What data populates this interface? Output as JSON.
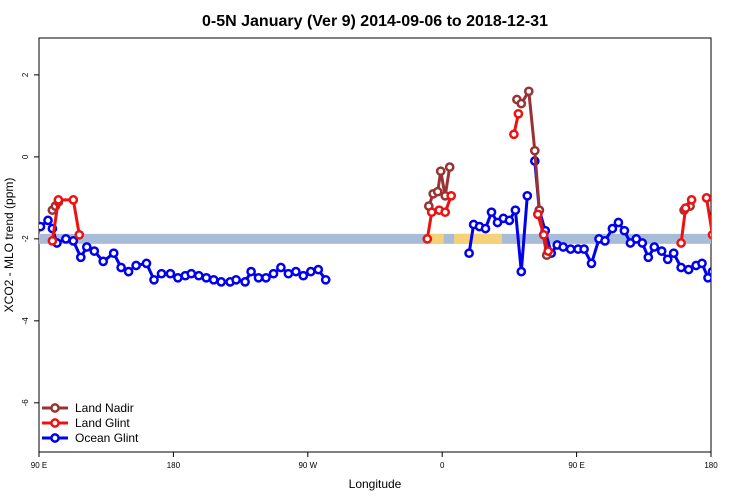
{
  "chart_data": {
    "type": "line",
    "title": "0-5N January (Ver 9)   2014-09-06 to 2018-12-31",
    "xlabel": "Longitude",
    "ylabel": "XCO2 - MLO trend (ppm)",
    "xlim": [
      90,
      540
    ],
    "ylim": [
      -7.2,
      2.9
    ],
    "x_ticks": [
      {
        "value": 90,
        "label": "90 E"
      },
      {
        "value": 180,
        "label": "180"
      },
      {
        "value": 270,
        "label": "90 W"
      },
      {
        "value": 360,
        "label": "0"
      },
      {
        "value": 450,
        "label": "90 E"
      },
      {
        "value": 540,
        "label": "180"
      }
    ],
    "y_ticks": [
      {
        "value": 2,
        "label": "2"
      },
      {
        "value": 0,
        "label": "0"
      },
      {
        "value": -2,
        "label": "-2"
      },
      {
        "value": -4,
        "label": "-4"
      },
      {
        "value": -6,
        "label": "-6"
      }
    ],
    "legend_position": "bottom-left",
    "band": {
      "y": -2,
      "color": "#a8bcd8",
      "highlight_color": "#f5d27a",
      "highlights": [
        [
          349,
          361
        ],
        [
          368,
          400
        ]
      ]
    },
    "series": [
      {
        "name": "Land Nadir",
        "color": "#993333",
        "segments": [
          [
            [
              99,
              -1.3
            ],
            [
              101,
              -1.2
            ],
            [
              103,
              -1.1
            ]
          ],
          [
            [
              351,
              -1.2
            ],
            [
              354,
              -0.9
            ],
            [
              357,
              -0.85
            ],
            [
              359,
              -0.35
            ],
            [
              362,
              -0.95
            ],
            [
              365,
              -0.25
            ]
          ],
          [
            [
              410,
              1.4
            ],
            [
              413,
              1.3
            ],
            [
              418,
              1.6
            ],
            [
              422,
              0.15
            ],
            [
              425,
              -1.3
            ],
            [
              430,
              -2.4
            ]
          ],
          [
            [
              522,
              -1.3
            ],
            [
              526,
              -1.2
            ]
          ]
        ]
      },
      {
        "name": "Land Glint",
        "color": "#ee1111",
        "segments": [
          [
            [
              99,
              -2.05
            ],
            [
              103,
              -1.05
            ],
            [
              113,
              -1.05
            ],
            [
              117,
              -1.9
            ]
          ],
          [
            [
              350,
              -2.0
            ],
            [
              353,
              -1.35
            ],
            [
              358,
              -1.3
            ],
            [
              362,
              -1.35
            ],
            [
              366,
              -0.95
            ]
          ],
          [
            [
              408,
              0.55
            ],
            [
              411,
              1.05
            ]
          ],
          [
            [
              424,
              -1.4
            ],
            [
              428,
              -1.9
            ],
            [
              431,
              -2.3
            ]
          ],
          [
            [
              520,
              -2.1
            ],
            [
              523,
              -1.25
            ],
            [
              527,
              -1.05
            ]
          ],
          [
            [
              537,
              -1.0
            ],
            [
              541,
              -1.9
            ]
          ]
        ]
      },
      {
        "name": "Ocean Glint",
        "color": "#0000ee",
        "segments": [
          [
            [
              91,
              -1.7
            ],
            [
              96,
              -1.55
            ],
            [
              99,
              -1.75
            ],
            [
              102,
              -2.1
            ],
            [
              108,
              -2.0
            ],
            [
              113,
              -2.05
            ],
            [
              118,
              -2.45
            ],
            [
              122,
              -2.2
            ],
            [
              127,
              -2.3
            ],
            [
              133,
              -2.55
            ],
            [
              140,
              -2.35
            ],
            [
              145,
              -2.7
            ],
            [
              150,
              -2.8
            ],
            [
              155,
              -2.65
            ],
            [
              162,
              -2.6
            ],
            [
              167,
              -3.0
            ],
            [
              172,
              -2.85
            ],
            [
              178,
              -2.85
            ],
            [
              183,
              -2.95
            ],
            [
              188,
              -2.9
            ],
            [
              192,
              -2.85
            ],
            [
              197,
              -2.9
            ],
            [
              202,
              -2.95
            ],
            [
              207,
              -3.0
            ],
            [
              212,
              -3.05
            ],
            [
              218,
              -3.05
            ],
            [
              222,
              -3.0
            ],
            [
              228,
              -3.05
            ],
            [
              232,
              -2.8
            ],
            [
              237,
              -2.95
            ],
            [
              242,
              -2.95
            ],
            [
              247,
              -2.85
            ],
            [
              252,
              -2.7
            ],
            [
              257,
              -2.85
            ],
            [
              262,
              -2.8
            ],
            [
              267,
              -2.9
            ],
            [
              272,
              -2.8
            ],
            [
              277,
              -2.75
            ],
            [
              282,
              -3.0
            ]
          ],
          [
            [
              378,
              -2.35
            ],
            [
              381,
              -1.65
            ],
            [
              385,
              -1.7
            ],
            [
              389,
              -1.75
            ],
            [
              393,
              -1.35
            ],
            [
              397,
              -1.6
            ],
            [
              401,
              -1.5
            ],
            [
              405,
              -1.55
            ],
            [
              409,
              -1.3
            ],
            [
              413,
              -2.8
            ],
            [
              417,
              -0.95
            ]
          ],
          [
            [
              422,
              -0.1
            ],
            [
              425,
              -1.3
            ],
            [
              429,
              -1.8
            ],
            [
              433,
              -2.35
            ],
            [
              437,
              -2.15
            ],
            [
              441,
              -2.2
            ],
            [
              446,
              -2.25
            ],
            [
              451,
              -2.25
            ],
            [
              455,
              -2.25
            ],
            [
              460,
              -2.6
            ],
            [
              465,
              -2.0
            ],
            [
              469,
              -2.05
            ],
            [
              474,
              -1.75
            ],
            [
              478,
              -1.6
            ],
            [
              482,
              -1.8
            ],
            [
              486,
              -2.1
            ],
            [
              490,
              -2.0
            ],
            [
              494,
              -2.1
            ],
            [
              498,
              -2.45
            ],
            [
              502,
              -2.2
            ],
            [
              507,
              -2.3
            ],
            [
              511,
              -2.5
            ],
            [
              515,
              -2.35
            ],
            [
              520,
              -2.7
            ],
            [
              525,
              -2.75
            ],
            [
              530,
              -2.65
            ],
            [
              534,
              -2.6
            ],
            [
              538,
              -2.95
            ],
            [
              541,
              -2.8
            ],
            [
              546,
              -2.8
            ]
          ]
        ]
      }
    ]
  }
}
